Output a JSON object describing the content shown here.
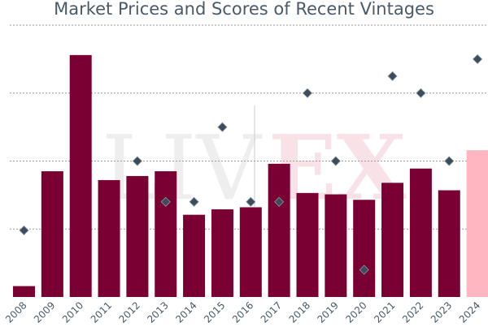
{
  "chart_data": {
    "type": "bar",
    "title": "Market Prices and Scores of Recent Vintages",
    "categories": [
      "2008",
      "2009",
      "2010",
      "2011",
      "2012",
      "2013",
      "2014",
      "2015",
      "2016",
      "2017",
      "2018",
      "2019",
      "2020",
      "2021",
      "2022",
      "2023",
      "2024"
    ],
    "series": [
      {
        "kind": "bar",
        "values": [
          0.16,
          1.85,
          3.56,
          1.72,
          1.78,
          1.85,
          1.21,
          1.29,
          1.32,
          1.96,
          1.53,
          1.51,
          1.43,
          1.68,
          1.89,
          1.57,
          2.16
        ],
        "colors": [
          "#7a0033",
          "#7a0033",
          "#7a0033",
          "#7a0033",
          "#7a0033",
          "#7a0033",
          "#7a0033",
          "#7a0033",
          "#7a0033",
          "#7a0033",
          "#7a0033",
          "#7a0033",
          "#7a0033",
          "#7a0033",
          "#7a0033",
          "#7a0033",
          "#ffb6c1"
        ]
      },
      {
        "kind": "scatter",
        "marker": "diamond",
        "values": [
          0.98,
          null,
          null,
          null,
          2.0,
          1.4,
          1.4,
          2.5,
          1.4,
          1.4,
          3.0,
          2.0,
          0.4,
          3.25,
          3.0,
          2.0,
          3.5
        ]
      }
    ],
    "ylim": [
      0,
      4
    ],
    "grid": true,
    "watermark": "LIV-EX",
    "colors": {
      "bar": "#7a0033",
      "bar_projected": "#ffb6c1",
      "marker": "#3d4c5a",
      "grid": "#999999",
      "text": "#4a5a68"
    }
  }
}
